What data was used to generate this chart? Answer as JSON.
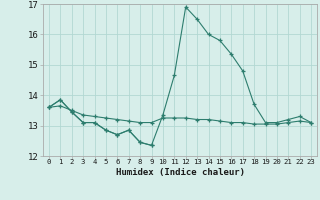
{
  "x": [
    0,
    1,
    2,
    3,
    4,
    5,
    6,
    7,
    8,
    9,
    10,
    11,
    12,
    13,
    14,
    15,
    16,
    17,
    18,
    19,
    20,
    21,
    22,
    23
  ],
  "line1": [
    13.6,
    13.85,
    13.45,
    13.1,
    13.1,
    12.85,
    12.7,
    12.85,
    12.45,
    12.35,
    null,
    null,
    null,
    null,
    null,
    null,
    null,
    null,
    null,
    null,
    null,
    null,
    null,
    null
  ],
  "line2": [
    13.6,
    13.85,
    13.45,
    13.1,
    13.1,
    12.85,
    12.7,
    12.85,
    12.45,
    12.35,
    13.35,
    14.65,
    16.9,
    16.5,
    16.0,
    15.8,
    15.35,
    14.8,
    13.7,
    13.1,
    13.1,
    13.2,
    13.3,
    13.1
  ],
  "line3": [
    13.6,
    13.65,
    13.5,
    13.35,
    13.3,
    13.25,
    13.2,
    13.15,
    13.1,
    13.1,
    13.25,
    13.25,
    13.25,
    13.2,
    13.2,
    13.15,
    13.1,
    13.1,
    13.05,
    13.05,
    13.05,
    13.1,
    13.15,
    13.1
  ],
  "line_color": "#2d7d6e",
  "background_color": "#d7eeea",
  "grid_color": "#b2d8d3",
  "xlabel": "Humidex (Indice chaleur)",
  "ylim": [
    12,
    17
  ],
  "xlim": [
    -0.5,
    23.5
  ],
  "yticks": [
    12,
    13,
    14,
    15,
    16,
    17
  ],
  "xticks": [
    0,
    1,
    2,
    3,
    4,
    5,
    6,
    7,
    8,
    9,
    10,
    11,
    12,
    13,
    14,
    15,
    16,
    17,
    18,
    19,
    20,
    21,
    22,
    23
  ]
}
